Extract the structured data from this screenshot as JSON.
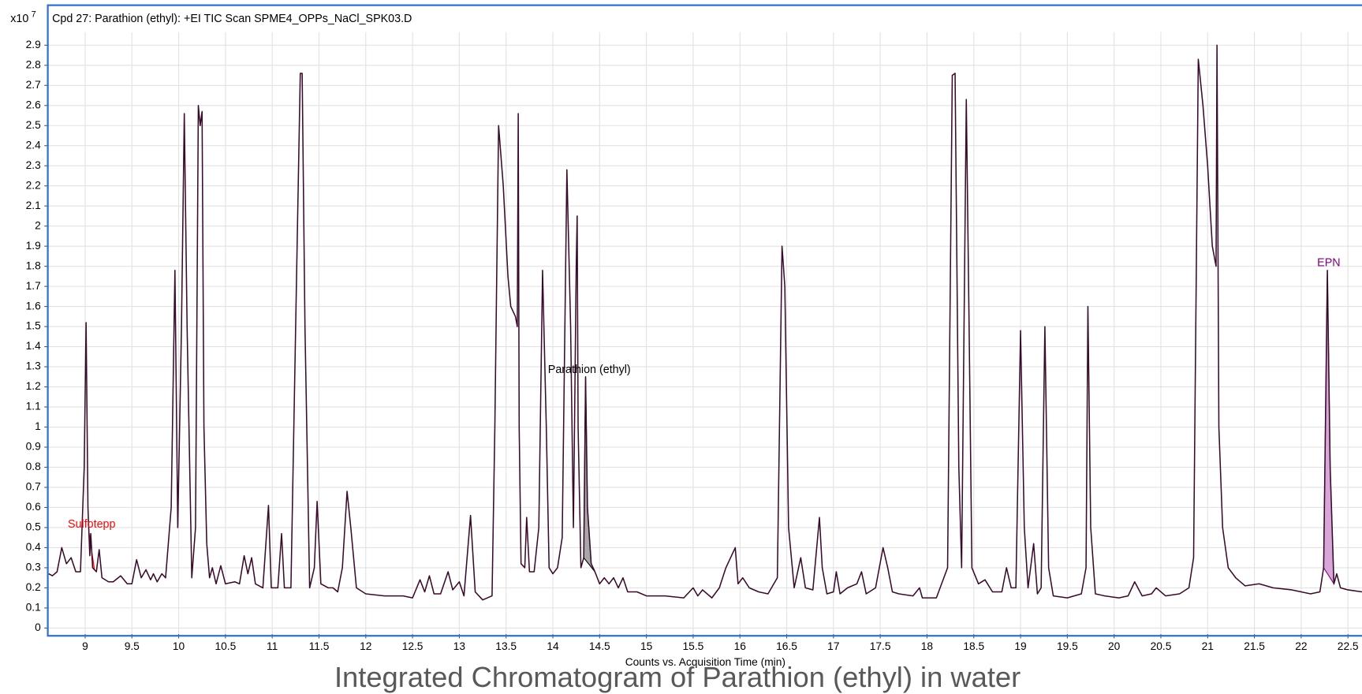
{
  "chart_data": {
    "type": "line",
    "title": "Cpd 27: Parathion (ethyl): +EI TIC Scan SPME4_OPPs_NaCl_SPK03.D",
    "caption": "Integrated Chromatogram of Parathion (ethyl) in water",
    "x_label": "Counts vs. Acquisition Time (min)",
    "y_multiplier": {
      "base": "x10",
      "exponent": 7
    },
    "grid": true,
    "xlim": [
      8.61,
      22.65
    ],
    "ylim": [
      -0.03,
      2.965
    ],
    "xticks": [
      9,
      9.5,
      10,
      10.5,
      11,
      11.5,
      12,
      12.5,
      13,
      13.5,
      14,
      14.5,
      15,
      15.5,
      16,
      16.5,
      17,
      17.5,
      18,
      18.5,
      19,
      19.5,
      20,
      20.5,
      21,
      21.5,
      22,
      22.5
    ],
    "yticks": [
      0,
      0.1,
      0.2,
      0.3,
      0.4,
      0.5,
      0.6,
      0.7,
      0.8,
      0.9,
      1,
      1.1,
      1.2,
      1.3,
      1.4,
      1.5,
      1.6,
      1.7,
      1.8,
      1.9,
      2,
      2.1,
      2.2,
      2.3,
      2.4,
      2.5,
      2.6,
      2.7,
      2.8,
      2.9
    ],
    "series": [
      {
        "color": "#3a0a2a",
        "x": [
          8.61,
          8.65,
          8.7,
          8.75,
          8.8,
          8.85,
          8.9,
          8.95,
          8.99,
          9.01,
          9.03,
          9.05,
          9.06,
          9.08,
          9.12,
          9.15,
          9.18,
          9.25,
          9.3,
          9.38,
          9.45,
          9.5,
          9.55,
          9.6,
          9.65,
          9.7,
          9.73,
          9.77,
          9.82,
          9.86,
          9.92,
          9.96,
          9.99,
          10.03,
          10.06,
          10.09,
          10.14,
          10.18,
          10.21,
          10.23,
          10.25,
          10.27,
          10.3,
          10.33,
          10.36,
          10.4,
          10.45,
          10.5,
          10.6,
          10.65,
          10.7,
          10.74,
          10.78,
          10.82,
          10.9,
          10.96,
          10.99,
          11.06,
          11.1,
          11.13,
          11.2,
          11.27,
          11.3,
          11.32,
          11.35,
          11.4,
          11.45,
          11.48,
          11.52,
          11.6,
          11.65,
          11.7,
          11.75,
          11.8,
          11.84,
          11.9,
          12.0,
          12.2,
          12.4,
          12.5,
          12.58,
          12.63,
          12.68,
          12.73,
          12.8,
          12.88,
          12.93,
          13.0,
          13.05,
          13.12,
          13.17,
          13.25,
          13.35,
          13.38,
          13.42,
          13.47,
          13.52,
          13.55,
          13.6,
          13.62,
          13.63,
          13.64,
          13.66,
          13.7,
          13.72,
          13.75,
          13.8,
          13.85,
          13.89,
          13.93,
          13.96,
          14.0,
          14.05,
          14.1,
          14.15,
          14.19,
          14.22,
          14.25,
          14.26,
          14.27,
          14.3,
          14.33,
          14.35,
          14.37,
          14.41,
          14.45,
          14.5,
          14.55,
          14.6,
          14.65,
          14.7,
          14.75,
          14.8,
          14.9,
          15.0,
          15.2,
          15.4,
          15.5,
          15.55,
          15.6,
          15.7,
          15.78,
          15.85,
          15.9,
          15.95,
          15.98,
          16.03,
          16.1,
          16.2,
          16.3,
          16.4,
          16.45,
          16.48,
          16.52,
          16.58,
          16.65,
          16.7,
          16.78,
          16.85,
          16.88,
          16.93,
          17.0,
          17.03,
          17.07,
          17.15,
          17.25,
          17.3,
          17.35,
          17.45,
          17.53,
          17.58,
          17.63,
          17.7,
          17.85,
          17.92,
          17.95,
          18.1,
          18.22,
          18.27,
          18.3,
          18.34,
          18.37,
          18.42,
          18.45,
          18.48,
          18.55,
          18.62,
          18.7,
          18.8,
          18.85,
          18.9,
          18.95,
          19.0,
          19.04,
          19.08,
          19.14,
          19.18,
          19.22,
          19.26,
          19.3,
          19.35,
          19.5,
          19.65,
          19.7,
          19.72,
          19.75,
          19.8,
          19.9,
          20.05,
          20.15,
          20.22,
          20.3,
          20.4,
          20.45,
          20.55,
          20.7,
          20.8,
          20.85,
          20.9,
          20.95,
          21.0,
          21.05,
          21.09,
          21.1,
          21.12,
          21.16,
          21.22,
          21.3,
          21.4,
          21.55,
          21.7,
          21.9,
          22.1,
          22.2,
          22.24,
          22.28,
          22.31,
          22.35,
          22.38,
          22.42,
          22.5,
          22.65
        ],
        "values": [
          0.27,
          0.26,
          0.28,
          0.4,
          0.32,
          0.35,
          0.28,
          0.28,
          0.8,
          1.52,
          0.6,
          0.36,
          0.47,
          0.3,
          0.28,
          0.39,
          0.25,
          0.23,
          0.23,
          0.26,
          0.22,
          0.22,
          0.34,
          0.25,
          0.29,
          0.24,
          0.27,
          0.23,
          0.27,
          0.25,
          0.6,
          1.78,
          0.5,
          1.5,
          2.56,
          1.5,
          0.25,
          0.5,
          2.6,
          2.5,
          2.57,
          1.0,
          0.42,
          0.25,
          0.3,
          0.22,
          0.31,
          0.22,
          0.23,
          0.22,
          0.36,
          0.27,
          0.35,
          0.22,
          0.2,
          0.61,
          0.2,
          0.2,
          0.47,
          0.2,
          0.2,
          2.0,
          2.76,
          2.76,
          1.5,
          0.2,
          0.3,
          0.63,
          0.22,
          0.2,
          0.2,
          0.18,
          0.3,
          0.68,
          0.5,
          0.2,
          0.17,
          0.16,
          0.16,
          0.15,
          0.24,
          0.18,
          0.26,
          0.17,
          0.17,
          0.28,
          0.19,
          0.23,
          0.16,
          0.56,
          0.18,
          0.14,
          0.16,
          1.0,
          2.5,
          2.2,
          1.75,
          1.6,
          1.55,
          1.5,
          2.56,
          1.0,
          0.32,
          0.3,
          0.55,
          0.28,
          0.28,
          0.5,
          1.78,
          1.0,
          0.3,
          0.27,
          0.3,
          0.45,
          2.28,
          1.5,
          0.5,
          1.8,
          2.05,
          1.0,
          0.3,
          0.35,
          1.25,
          0.6,
          0.32,
          0.28,
          0.22,
          0.25,
          0.22,
          0.25,
          0.2,
          0.25,
          0.18,
          0.18,
          0.16,
          0.16,
          0.15,
          0.2,
          0.16,
          0.19,
          0.15,
          0.2,
          0.3,
          0.35,
          0.4,
          0.22,
          0.25,
          0.2,
          0.18,
          0.17,
          0.25,
          1.9,
          1.7,
          0.5,
          0.2,
          0.35,
          0.2,
          0.19,
          0.55,
          0.3,
          0.17,
          0.18,
          0.28,
          0.17,
          0.2,
          0.22,
          0.28,
          0.17,
          0.2,
          0.4,
          0.3,
          0.18,
          0.17,
          0.16,
          0.2,
          0.15,
          0.15,
          0.3,
          2.75,
          2.76,
          0.8,
          0.3,
          2.63,
          1.5,
          0.3,
          0.22,
          0.24,
          0.18,
          0.18,
          0.3,
          0.2,
          0.2,
          1.48,
          0.5,
          0.2,
          0.42,
          0.17,
          0.2,
          1.5,
          0.3,
          0.16,
          0.15,
          0.17,
          0.3,
          1.6,
          0.5,
          0.17,
          0.16,
          0.15,
          0.16,
          0.23,
          0.16,
          0.17,
          0.2,
          0.16,
          0.17,
          0.2,
          0.35,
          2.83,
          2.6,
          2.3,
          1.9,
          1.8,
          2.9,
          1.0,
          0.5,
          0.3,
          0.25,
          0.21,
          0.22,
          0.2,
          0.19,
          0.17,
          0.18,
          0.3,
          1.78,
          0.8,
          0.22,
          0.27,
          0.2,
          0.19,
          0.18
        ]
      }
    ],
    "integrations": [
      {
        "label": "Sulfotepp",
        "start": 9.04,
        "end": 9.1,
        "color": "#ff0000",
        "fill": "#ff9a9a"
      },
      {
        "label": "Parathion (ethyl)",
        "start": 14.33,
        "end": 14.45,
        "color": "#000000",
        "fill": "#a8a8a8"
      },
      {
        "label": "EPN",
        "start": 22.24,
        "end": 22.35,
        "color": "#800080",
        "fill": "#d9a6d9"
      }
    ]
  }
}
